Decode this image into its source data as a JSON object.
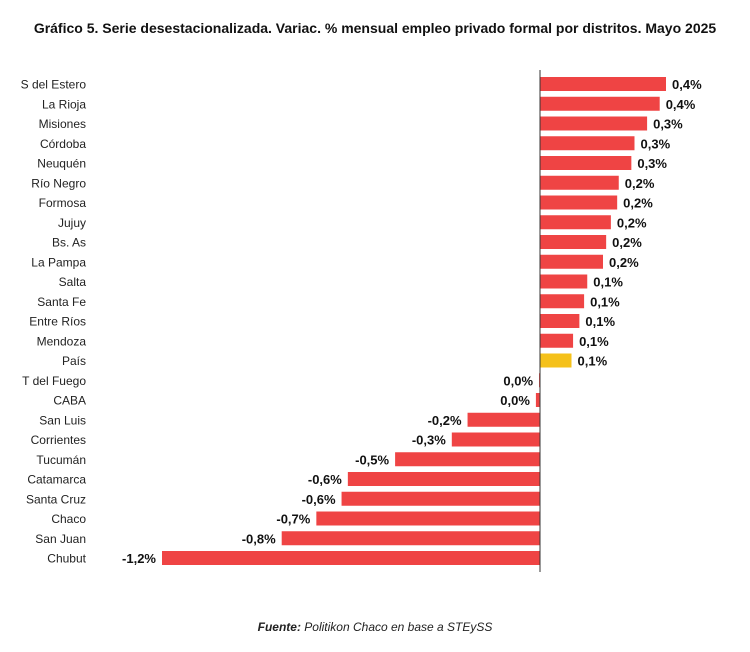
{
  "chart_data": {
    "type": "bar",
    "orientation": "horizontal",
    "title": "Gráfico 5. Serie desestacionalizada. Variac. % mensual empleo privado formal por distritos. Mayo 2025",
    "xlabel": "",
    "ylabel": "",
    "xlim": [
      -1.2,
      0.4
    ],
    "grid": false,
    "categories": [
      "S del Estero",
      "La Rioja",
      "Misiones",
      "Córdoba",
      "Neuquén",
      "Río Negro",
      "Formosa",
      "Jujuy",
      "Bs. As",
      "La Pampa",
      "Salta",
      "Santa Fe",
      "Entre Ríos",
      "Mendoza",
      "País",
      "T del Fuego",
      "CABA",
      "San Luis",
      "Corrientes",
      "Tucumán",
      "Catamarca",
      "Santa Cruz",
      "Chaco",
      "San Juan",
      "Chubut"
    ],
    "values": [
      0.4,
      0.38,
      0.34,
      0.3,
      0.29,
      0.25,
      0.245,
      0.225,
      0.21,
      0.2,
      0.15,
      0.14,
      0.125,
      0.105,
      0.1,
      -0.003,
      -0.013,
      -0.23,
      -0.28,
      -0.46,
      -0.61,
      -0.63,
      -0.71,
      -0.82,
      -1.2
    ],
    "labels": [
      "0,4%",
      "0,4%",
      "0,3%",
      "0,3%",
      "0,3%",
      "0,2%",
      "0,2%",
      "0,2%",
      "0,2%",
      "0,2%",
      "0,1%",
      "0,1%",
      "0,1%",
      "0,1%",
      "0,1%",
      "0,0%",
      "0,0%",
      "-0,2%",
      "-0,3%",
      "-0,5%",
      "-0,6%",
      "-0,6%",
      "-0,7%",
      "-0,8%",
      "-1,2%"
    ],
    "highlight": "País",
    "colors": {
      "bar": "#ef4444",
      "highlight": "#f5c11a",
      "axis": "#333333"
    }
  },
  "source": {
    "prefix": "Fuente:",
    "text": " Politikon Chaco en base a STEySS"
  }
}
